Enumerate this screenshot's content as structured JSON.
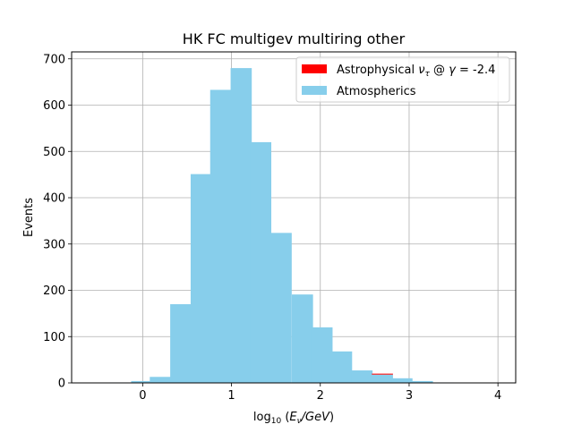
{
  "chart_data": {
    "type": "bar",
    "title": "HK FC multigev multiring other",
    "xlabel": "log₁₀ (Eν/GeV)",
    "ylabel": "Events",
    "xlim": [
      -0.8,
      4.2
    ],
    "ylim": [
      0,
      715
    ],
    "xticks": [
      "0",
      "1",
      "2",
      "3",
      "4"
    ],
    "yticks": [
      "0",
      "100",
      "200",
      "300",
      "400",
      "500",
      "600",
      "700"
    ],
    "grid": true,
    "legend_position": "top-right",
    "bin_width": 0.2381,
    "bin_lefts": [
      -0.37,
      -0.13,
      0.08,
      0.31,
      0.54,
      0.76,
      0.99,
      1.21,
      1.44,
      1.68,
      1.9,
      2.12,
      2.35,
      2.58,
      2.8,
      3.03,
      3.26
    ],
    "series": [
      {
        "name": "Atmospherics",
        "color": "#87ceeb",
        "values": [
          1,
          4,
          13,
          170,
          451,
          633,
          680,
          520,
          324,
          191,
          120,
          68,
          27,
          18,
          10,
          4,
          1
        ]
      },
      {
        "name": "Astrophysical ντ @ γ = -2.4",
        "color": "#ff0000",
        "values": [
          0,
          0,
          0,
          0,
          0,
          0,
          0,
          0,
          0,
          0,
          0,
          0,
          0,
          2,
          0,
          0,
          0
        ]
      }
    ]
  }
}
